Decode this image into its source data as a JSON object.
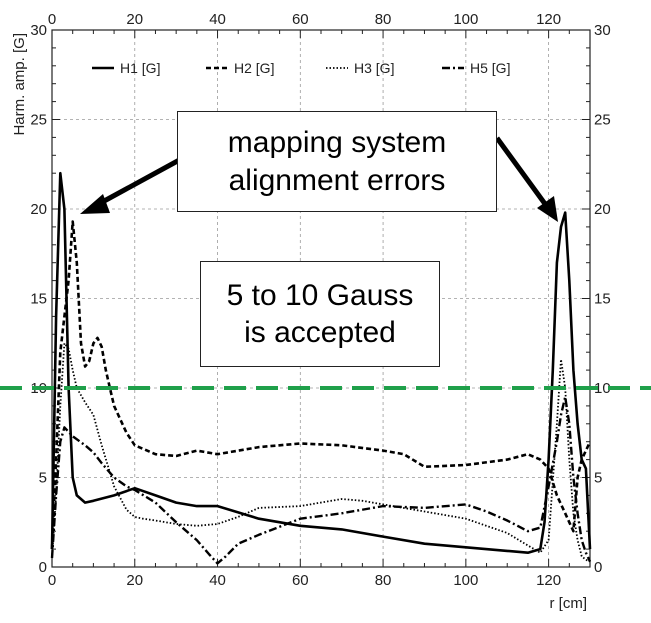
{
  "chart_data": {
    "type": "line",
    "xlabel": "r [cm]",
    "ylabel": "Harm. amp. [G]",
    "xlim": [
      0,
      130
    ],
    "ylim": [
      0,
      30
    ],
    "xticks": [
      0,
      20,
      40,
      60,
      80,
      100,
      120
    ],
    "yticks": [
      0,
      5,
      10,
      15,
      20,
      25,
      30
    ],
    "grid": true,
    "legend_position": "top",
    "series": [
      {
        "name": "H1 [G]",
        "style": "solid",
        "color": "#000000",
        "x": [
          0,
          1,
          2,
          3,
          4,
          5,
          6,
          8,
          10,
          15,
          20,
          25,
          30,
          35,
          40,
          50,
          60,
          70,
          80,
          90,
          100,
          110,
          115,
          118,
          119,
          120,
          121,
          122,
          123,
          124,
          125,
          126,
          127,
          128,
          129,
          130
        ],
        "y": [
          1,
          14,
          22,
          20,
          10,
          5,
          4,
          3.6,
          3.7,
          4,
          4.4,
          4,
          3.6,
          3.4,
          3.4,
          2.7,
          2.3,
          2.1,
          1.7,
          1.3,
          1.1,
          0.9,
          0.8,
          1.0,
          2.5,
          6,
          11,
          17,
          19,
          19.8,
          16,
          11,
          8,
          6,
          5.5,
          1
        ]
      },
      {
        "name": "H2 [G]",
        "style": "dashed",
        "color": "#000000",
        "x": [
          0,
          1,
          2,
          3,
          4,
          5,
          6,
          7,
          8,
          9,
          10,
          11,
          12,
          13,
          14,
          15,
          18,
          20,
          25,
          30,
          35,
          40,
          50,
          60,
          70,
          80,
          85,
          90,
          100,
          110,
          115,
          118,
          120,
          122,
          124,
          125,
          126,
          127,
          128,
          129,
          130
        ],
        "y": [
          1,
          6,
          12,
          14,
          16,
          19.3,
          17,
          12.5,
          11.2,
          11.5,
          12.5,
          12.8,
          12.3,
          11,
          10,
          9,
          7.5,
          6.8,
          6.3,
          6.2,
          6.5,
          6.3,
          6.7,
          6.9,
          6.8,
          6.5,
          6.3,
          5.6,
          5.7,
          6.0,
          6.3,
          6.0,
          5.5,
          4,
          3,
          2.5,
          2,
          5,
          6,
          6.5,
          7
        ]
      },
      {
        "name": "H3 [G]",
        "style": "dotted",
        "color": "#000000",
        "x": [
          0,
          1,
          2,
          3,
          4,
          5,
          6,
          8,
          10,
          12,
          15,
          18,
          20,
          22,
          25,
          30,
          35,
          40,
          45,
          50,
          60,
          70,
          75,
          80,
          90,
          100,
          110,
          115,
          118,
          120,
          122,
          123,
          124,
          125,
          126,
          127,
          128,
          129,
          130
        ],
        "y": [
          0.5,
          4,
          9,
          12.5,
          12.2,
          11,
          10,
          9.2,
          8.5,
          6.8,
          4.5,
          3.2,
          2.8,
          2.7,
          2.6,
          2.4,
          2.3,
          2.4,
          2.8,
          3.3,
          3.4,
          3.8,
          3.7,
          3.5,
          3.1,
          2.7,
          1.9,
          1.2,
          0.8,
          1.5,
          8,
          11.6,
          10,
          6,
          3,
          1.5,
          0.6,
          0.4,
          0.3
        ]
      },
      {
        "name": "H5 [G]",
        "style": "dashdot",
        "color": "#000000",
        "x": [
          0,
          1,
          2,
          3,
          5,
          8,
          10,
          12,
          15,
          18,
          20,
          25,
          30,
          35,
          38,
          40,
          42,
          45,
          50,
          60,
          70,
          80,
          90,
          100,
          105,
          110,
          115,
          118,
          120,
          122,
          123,
          124,
          125,
          126,
          127,
          128,
          129,
          130
        ],
        "y": [
          0.5,
          4,
          7,
          7.8,
          7.3,
          6.8,
          6.4,
          5.8,
          5,
          4.5,
          4.3,
          3.6,
          2.5,
          1.5,
          0.7,
          0.2,
          0.6,
          1.3,
          1.8,
          2.7,
          3.0,
          3.4,
          3.3,
          3.5,
          3.1,
          2.6,
          2.0,
          2.2,
          4.5,
          7,
          8.5,
          9.5,
          8,
          5,
          3,
          1.5,
          0.8,
          0.3
        ]
      }
    ],
    "threshold": {
      "y": 10,
      "color": "#1fa04a"
    },
    "annotations": [
      {
        "lines": [
          "mapping system",
          "alignment errors"
        ]
      },
      {
        "lines": [
          "5 to 10 Gauss",
          "is accepted"
        ]
      }
    ]
  },
  "colors": {
    "threshold": "#1fa04a",
    "frame": "#222222",
    "grid": "#9a9a9a"
  }
}
